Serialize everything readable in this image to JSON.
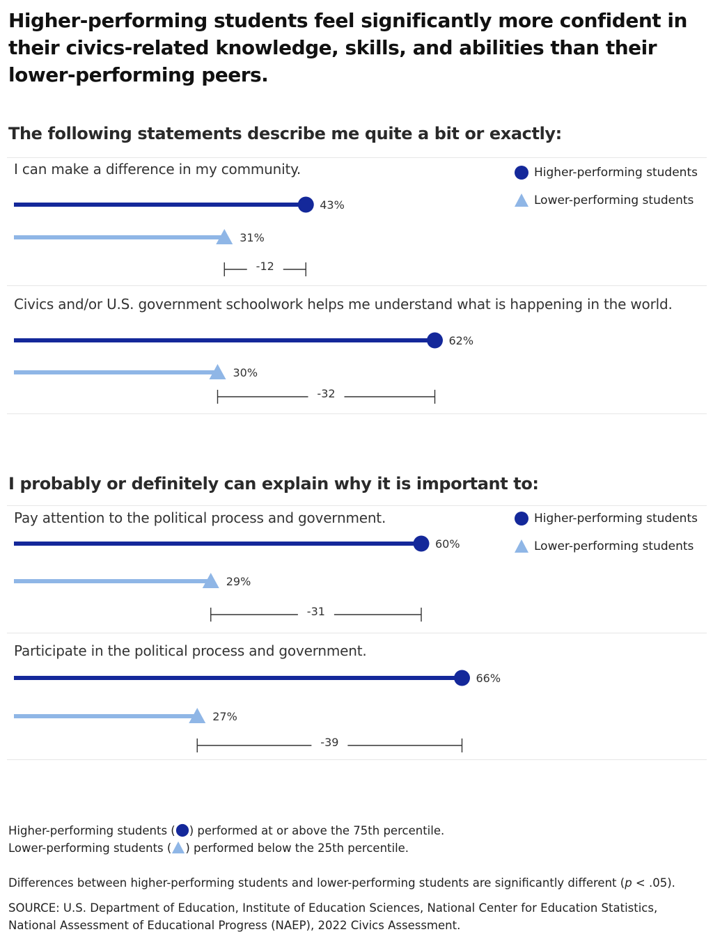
{
  "title": "Higher-performing students feel significantly more confident in their civics-related knowledge, skills, and abilities than their lower-performing peers.",
  "legend": {
    "higher": "Higher-performing students",
    "lower": "Lower-performing students"
  },
  "colors": {
    "higher": "#14289a",
    "lower": "#8fb6e6",
    "bracket": "#333333"
  },
  "chart_data": [
    {
      "type": "dumbbell",
      "title": "The following statements describe me quite a bit or exactly:",
      "xlim": [
        0,
        100
      ],
      "series": [
        {
          "name": "Higher-performing students",
          "marker": "circle"
        },
        {
          "name": "Lower-performing students",
          "marker": "triangle"
        }
      ],
      "items": [
        {
          "label": "I can make a difference in my community.",
          "higher": 43,
          "lower": 31,
          "higher_label": "43%",
          "lower_label": "31%",
          "diff": "-12"
        },
        {
          "label": "Civics and/or U.S. government schoolwork helps me understand what is happening in the world.",
          "higher": 62,
          "lower": 30,
          "higher_label": "62%",
          "lower_label": "30%",
          "diff": "-32"
        }
      ]
    },
    {
      "type": "dumbbell",
      "title": "I probably or definitely can explain why it is important to:",
      "xlim": [
        0,
        100
      ],
      "series": [
        {
          "name": "Higher-performing students",
          "marker": "circle"
        },
        {
          "name": "Lower-performing students",
          "marker": "triangle"
        }
      ],
      "items": [
        {
          "label": "Pay attention to the political process and government.",
          "higher": 60,
          "lower": 29,
          "higher_label": "60%",
          "lower_label": "29%",
          "diff": "-31"
        },
        {
          "label": "Participate in the political process and government.",
          "higher": 66,
          "lower": 27,
          "higher_label": "66%",
          "lower_label": "27%",
          "diff": "-39"
        }
      ]
    }
  ],
  "footnotes": {
    "higher_pre": "Higher-performing students (",
    "higher_post": ") performed at or above the 75th percentile.",
    "lower_pre": "Lower-performing students (",
    "lower_post": ") performed below the 25th percentile.",
    "significance_pre": "Differences between higher-performing students and lower-performing students are significantly different (",
    "significance_p": "p",
    "significance_post": " < .05).",
    "source": "SOURCE: U.S. Department of Education, Institute of Education Sciences, National Center for Education Statistics, National Assessment of Educational Progress (NAEP), 2022 Civics Assessment."
  }
}
